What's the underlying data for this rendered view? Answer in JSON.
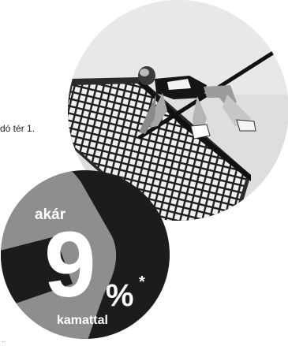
{
  "address_fragment": "dó tér 1.",
  "badge": {
    "prefix": "akár",
    "number": "9",
    "percent": "%",
    "asterisk": "*",
    "suffix": "kamattal"
  },
  "colors": {
    "badge_dark": "#1c1c1c",
    "badge_grey": "#8e8e8e",
    "photo_sky": "#dcdcdc",
    "building": "#2a2a2a"
  },
  "icons": {
    "photo": "high-jumper-over-skyscraper-photo"
  }
}
